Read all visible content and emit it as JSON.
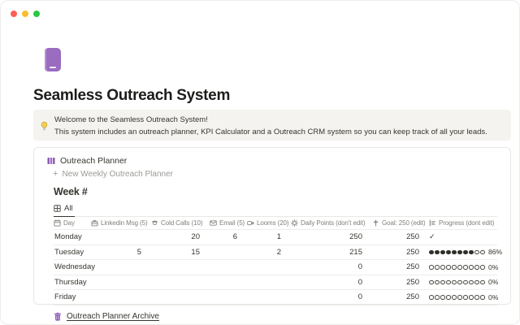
{
  "window": {
    "traffic_lights": [
      "close",
      "minimize",
      "expand"
    ]
  },
  "page": {
    "icon": "journal-icon",
    "title": "Seamless Outreach System",
    "callout": {
      "icon": "lightbulb-icon",
      "line1": "Welcome to the Seamless Outreach System!",
      "line2": "This system includes an outreach planner, KPI Calculator and a Outreach CRM system so you can keep track of all your leads."
    }
  },
  "planner": {
    "icon": "bar-chart-icon",
    "title": "Outreach Planner",
    "new_item_label": "New Weekly Outreach Planner",
    "week_title": "Week #",
    "tabs": [
      {
        "label": "All",
        "icon": "table-icon",
        "active": true
      }
    ],
    "columns": [
      {
        "key": "day",
        "label": "Day",
        "icon": "calendar-icon"
      },
      {
        "key": "linkedin_msg",
        "label": "Linkedin Msg (5)",
        "icon": "briefcase-icon"
      },
      {
        "key": "cold_calls",
        "label": "Cold Calls (10)",
        "icon": "phone-icon"
      },
      {
        "key": "email",
        "label": "Email (5)",
        "icon": "envelope-icon"
      },
      {
        "key": "looms",
        "label": "Looms (20)",
        "icon": "video-camera-icon"
      },
      {
        "key": "daily_points",
        "label": "Daily Points (don't edit)",
        "icon": "gear-icon"
      },
      {
        "key": "goal",
        "label": "Goal: 250 (edit)",
        "icon": "goal-icon"
      },
      {
        "key": "progress",
        "label": "Progress (dont edit)",
        "icon": "progress-chart-icon"
      }
    ],
    "rows": [
      {
        "day": "Monday",
        "linkedin_msg": "",
        "cold_calls": "20",
        "email": "6",
        "looms": "1",
        "daily_points": "250",
        "goal": "250",
        "progress": {
          "type": "check",
          "text": "✓"
        }
      },
      {
        "day": "Tuesday",
        "linkedin_msg": "5",
        "cold_calls": "15",
        "email": "",
        "looms": "2",
        "daily_points": "215",
        "goal": "250",
        "progress": {
          "type": "ring",
          "filled": 8,
          "total": 10,
          "text": "86%"
        }
      },
      {
        "day": "Wednesday",
        "linkedin_msg": "",
        "cold_calls": "",
        "email": "",
        "looms": "",
        "daily_points": "0",
        "goal": "250",
        "progress": {
          "type": "ring",
          "filled": 0,
          "total": 10,
          "text": "0%"
        }
      },
      {
        "day": "Thursday",
        "linkedin_msg": "",
        "cold_calls": "",
        "email": "",
        "looms": "",
        "daily_points": "0",
        "goal": "250",
        "progress": {
          "type": "ring",
          "filled": 0,
          "total": 10,
          "text": "0%"
        }
      },
      {
        "day": "Friday",
        "linkedin_msg": "",
        "cold_calls": "",
        "email": "",
        "looms": "",
        "daily_points": "0",
        "goal": "250",
        "progress": {
          "type": "ring",
          "filled": 0,
          "total": 10,
          "text": "0%"
        }
      }
    ],
    "archive": {
      "icon": "trash-icon",
      "label": "Outreach Planner Archive"
    }
  },
  "colors": {
    "accent_purple": "#8a55b5",
    "traffic_red": "#ff5f57",
    "traffic_yellow": "#febc2e",
    "traffic_green": "#28c840"
  }
}
